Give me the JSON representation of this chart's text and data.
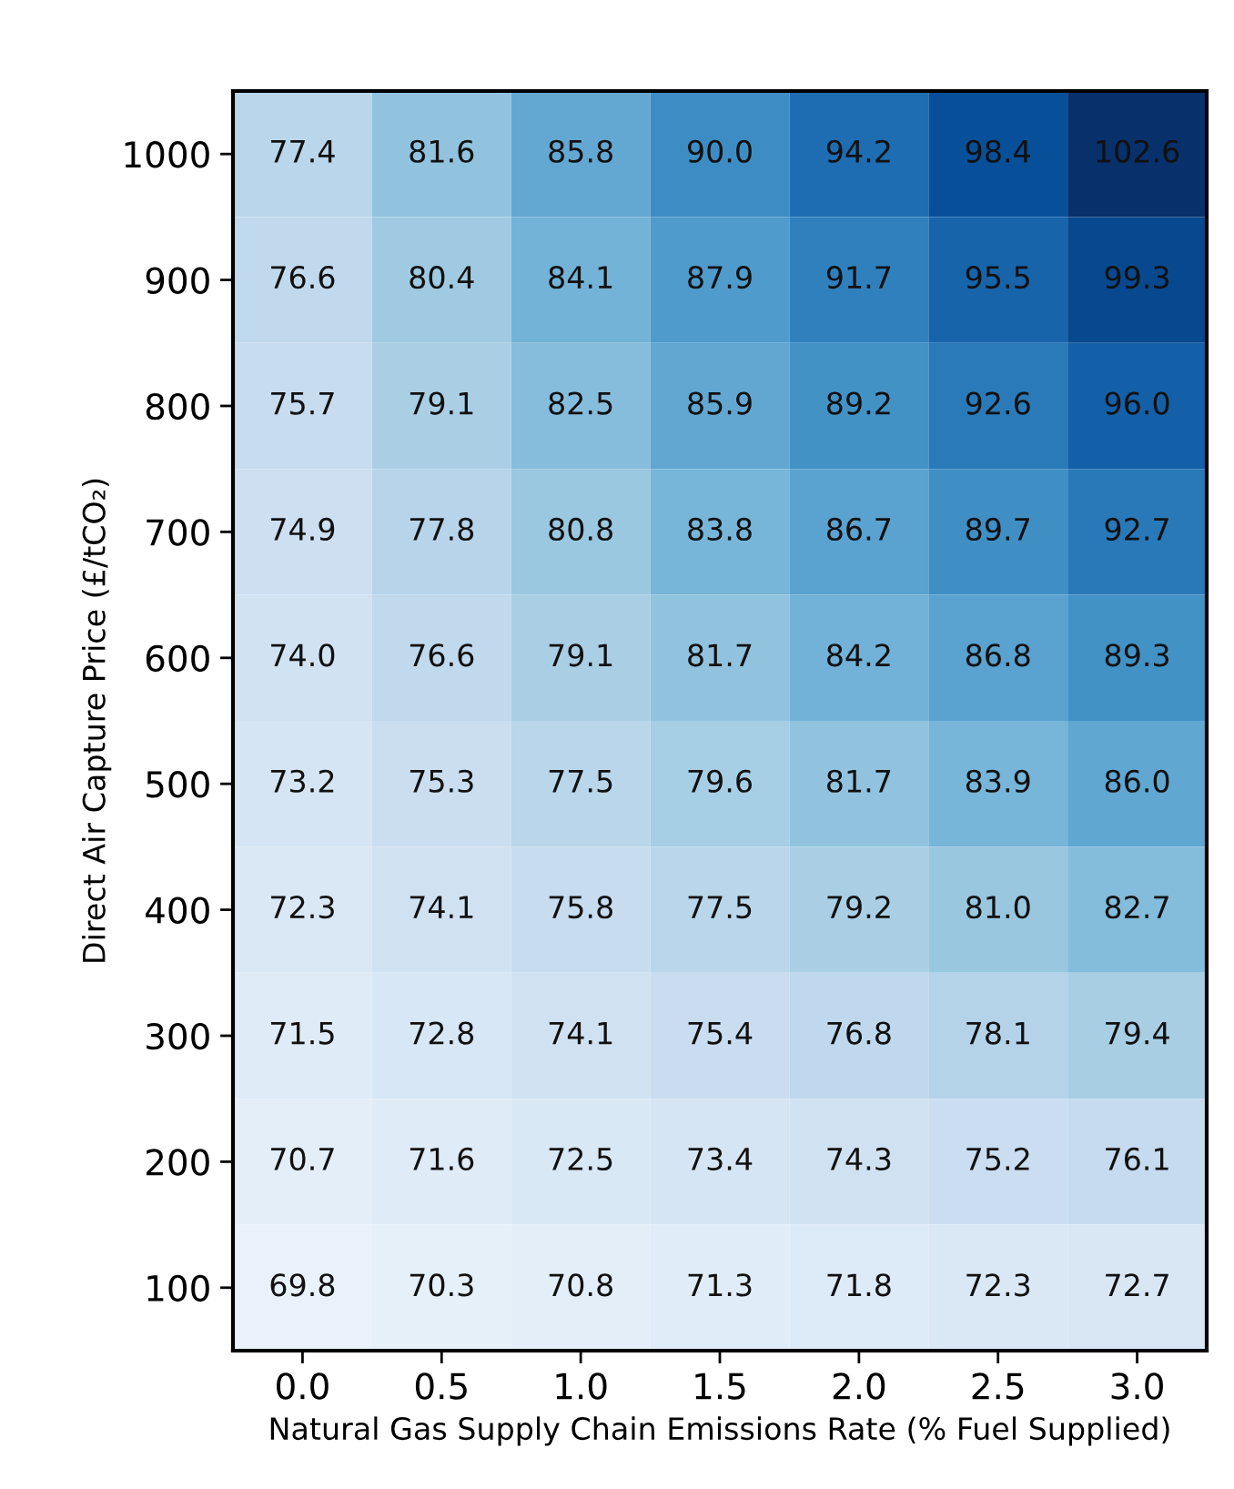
{
  "chart_data": {
    "type": "heatmap",
    "xlabel": "Natural Gas Supply Chain Emissions Rate (% Fuel Supplied)",
    "ylabel": "Direct Air Capture Price (£/tCO₂)",
    "categories": [
      "0.0",
      "0.5",
      "1.0",
      "1.5",
      "2.0",
      "2.5",
      "3.0"
    ],
    "y_categories": [
      "1000",
      "900",
      "800",
      "700",
      "600",
      "500",
      "400",
      "300",
      "200",
      "100"
    ],
    "cells": [
      [
        77.4,
        81.6,
        85.8,
        90.0,
        94.2,
        98.4,
        102.6
      ],
      [
        76.6,
        80.4,
        84.1,
        87.9,
        91.7,
        95.5,
        99.3
      ],
      [
        75.7,
        79.1,
        82.5,
        85.9,
        89.2,
        92.6,
        96.0
      ],
      [
        74.9,
        77.8,
        80.8,
        83.8,
        86.7,
        89.7,
        92.7
      ],
      [
        74.0,
        76.6,
        79.1,
        81.7,
        84.2,
        86.8,
        89.3
      ],
      [
        73.2,
        75.3,
        77.5,
        79.6,
        81.7,
        83.9,
        86.0
      ],
      [
        72.3,
        74.1,
        75.8,
        77.5,
        79.2,
        81.0,
        82.7
      ],
      [
        71.5,
        72.8,
        74.1,
        75.4,
        76.8,
        78.1,
        79.4
      ],
      [
        70.7,
        71.6,
        72.5,
        73.4,
        74.3,
        75.2,
        76.1
      ],
      [
        69.8,
        70.3,
        70.8,
        71.3,
        71.8,
        72.3,
        72.7
      ]
    ],
    "cell_labels": [
      [
        "77.4",
        "81.6",
        "85.8",
        "90.0",
        "94.2",
        "98.4",
        "102.6"
      ],
      [
        "76.6",
        "80.4",
        "84.1",
        "87.9",
        "91.7",
        "95.5",
        "99.3"
      ],
      [
        "75.7",
        "79.1",
        "82.5",
        "85.9",
        "89.2",
        "92.6",
        "96.0"
      ],
      [
        "74.9",
        "77.8",
        "80.8",
        "83.8",
        "86.7",
        "89.7",
        "92.7"
      ],
      [
        "74.0",
        "76.6",
        "79.1",
        "81.7",
        "84.2",
        "86.8",
        "89.3"
      ],
      [
        "73.2",
        "75.3",
        "77.5",
        "79.6",
        "81.7",
        "83.9",
        "86.0"
      ],
      [
        "72.3",
        "74.1",
        "75.8",
        "77.5",
        "79.2",
        "81.0",
        "82.7"
      ],
      [
        "71.5",
        "72.8",
        "74.1",
        "75.4",
        "76.8",
        "78.1",
        "79.4"
      ],
      [
        "70.7",
        "71.6",
        "72.5",
        "73.4",
        "74.3",
        "75.2",
        "76.1"
      ],
      [
        "69.8",
        "70.3",
        "70.8",
        "71.3",
        "71.8",
        "72.3",
        "72.7"
      ]
    ]
  }
}
